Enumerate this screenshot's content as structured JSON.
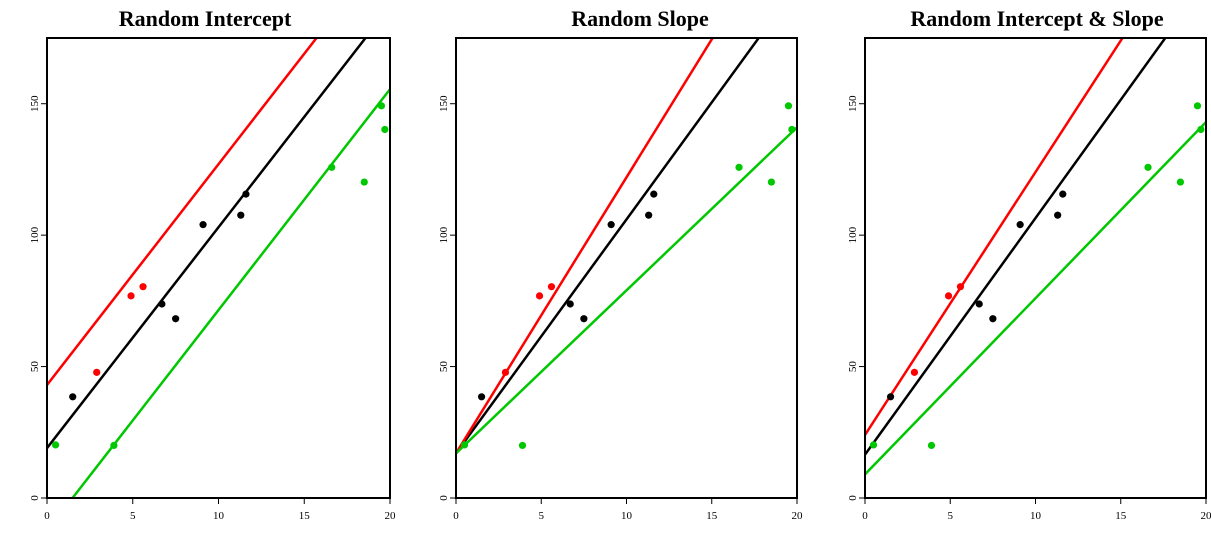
{
  "colors": {
    "background": "#ffffff",
    "axis": "#000000",
    "group_black": "#000000",
    "group_red": "#ff0000",
    "group_green": "#00c800"
  },
  "chart_data": [
    {
      "type": "scatter",
      "title": "Random Intercept",
      "xlabel": "",
      "ylabel": "",
      "xlim": [
        0,
        20
      ],
      "ylim": [
        0,
        175
      ],
      "xticks": [
        0,
        5,
        10,
        15,
        20
      ],
      "yticks": [
        0,
        50,
        100,
        150
      ],
      "grid": false,
      "legend": "none",
      "series": [
        {
          "color": "#000000",
          "points": [
            [
              1.5,
              38.5
            ],
            [
              6.7,
              73.8
            ],
            [
              7.5,
              68.2
            ],
            [
              9.1,
              104.0
            ],
            [
              11.3,
              107.6
            ],
            [
              11.6,
              115.6
            ]
          ],
          "fit": {
            "intercept": 19,
            "slope": 8.4
          }
        },
        {
          "color": "#ff0000",
          "points": [
            [
              2.9,
              47.8
            ],
            [
              4.9,
              76.9
            ],
            [
              5.6,
              80.4
            ]
          ],
          "fit": {
            "intercept": 43,
            "slope": 8.4
          }
        },
        {
          "color": "#00c800",
          "points": [
            [
              0.5,
              20.2
            ],
            [
              3.9,
              20.0
            ],
            [
              16.6,
              125.8
            ],
            [
              18.5,
              120.2
            ],
            [
              19.5,
              149.2
            ],
            [
              19.7,
              140.2
            ]
          ],
          "fit": {
            "intercept": -12.5,
            "slope": 8.4
          }
        }
      ]
    },
    {
      "type": "scatter",
      "title": "Random Slope",
      "xlabel": "",
      "ylabel": "",
      "xlim": [
        0,
        20
      ],
      "ylim": [
        0,
        175
      ],
      "xticks": [
        0,
        5,
        10,
        15,
        20
      ],
      "yticks": [
        0,
        50,
        100,
        150
      ],
      "grid": false,
      "legend": "none",
      "series": [
        {
          "color": "#000000",
          "points": [
            [
              1.5,
              38.5
            ],
            [
              6.7,
              73.8
            ],
            [
              7.5,
              68.2
            ],
            [
              9.1,
              104.0
            ],
            [
              11.3,
              107.6
            ],
            [
              11.6,
              115.6
            ]
          ],
          "fit": {
            "intercept": 17,
            "slope": 8.9
          }
        },
        {
          "color": "#ff0000",
          "points": [
            [
              2.9,
              47.8
            ],
            [
              4.9,
              76.9
            ],
            [
              5.6,
              80.4
            ]
          ],
          "fit": {
            "intercept": 17,
            "slope": 10.5
          }
        },
        {
          "color": "#00c800",
          "points": [
            [
              0.5,
              20.2
            ],
            [
              3.9,
              20.0
            ],
            [
              16.6,
              125.8
            ],
            [
              18.5,
              120.2
            ],
            [
              19.5,
              149.2
            ],
            [
              19.7,
              140.2
            ]
          ],
          "fit": {
            "intercept": 17,
            "slope": 6.2
          }
        }
      ]
    },
    {
      "type": "scatter",
      "title": "Random Intercept & Slope",
      "xlabel": "",
      "ylabel": "",
      "xlim": [
        0,
        20
      ],
      "ylim": [
        0,
        175
      ],
      "xticks": [
        0,
        5,
        10,
        15,
        20
      ],
      "yticks": [
        0,
        50,
        100,
        150
      ],
      "grid": false,
      "legend": "none",
      "series": [
        {
          "color": "#000000",
          "points": [
            [
              1.5,
              38.5
            ],
            [
              6.7,
              73.8
            ],
            [
              7.5,
              68.2
            ],
            [
              9.1,
              104.0
            ],
            [
              11.3,
              107.6
            ],
            [
              11.6,
              115.6
            ]
          ],
          "fit": {
            "intercept": 16.5,
            "slope": 9.0
          }
        },
        {
          "color": "#ff0000",
          "points": [
            [
              2.9,
              47.8
            ],
            [
              4.9,
              76.9
            ],
            [
              5.6,
              80.4
            ]
          ],
          "fit": {
            "intercept": 24,
            "slope": 10.0
          }
        },
        {
          "color": "#00c800",
          "points": [
            [
              0.5,
              20.2
            ],
            [
              3.9,
              20.0
            ],
            [
              16.6,
              125.8
            ],
            [
              18.5,
              120.2
            ],
            [
              19.5,
              149.2
            ],
            [
              19.7,
              140.2
            ]
          ],
          "fit": {
            "intercept": 9,
            "slope": 6.7
          }
        }
      ]
    }
  ]
}
